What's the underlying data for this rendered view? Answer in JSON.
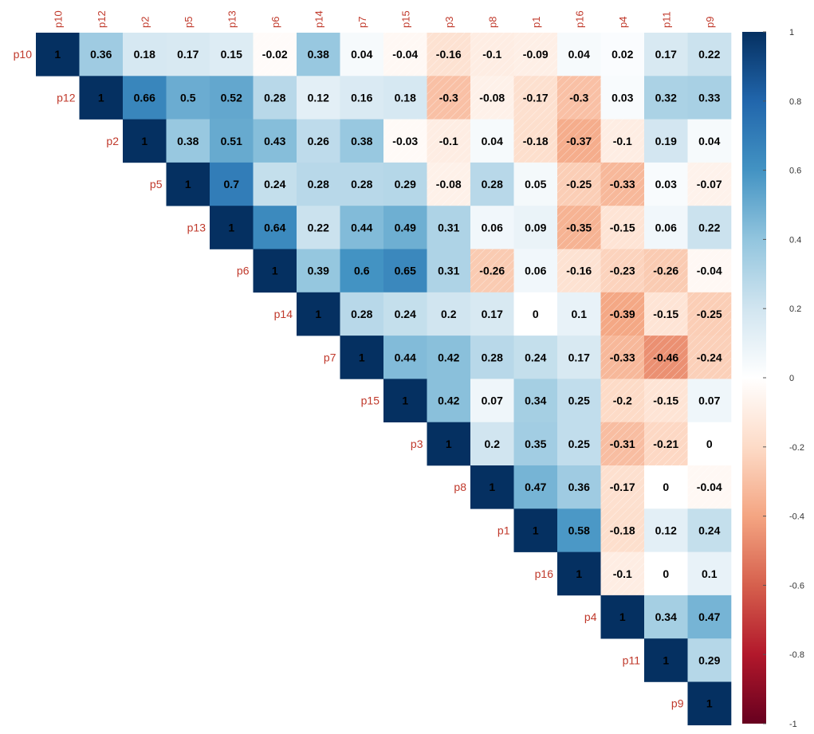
{
  "chart_data": {
    "type": "heatmap",
    "layout": "upper-triangle",
    "title": "",
    "xlabel": "",
    "ylabel": "",
    "variables": [
      "p10",
      "p12",
      "p2",
      "p5",
      "p13",
      "p6",
      "p14",
      "p7",
      "p15",
      "p3",
      "p8",
      "p1",
      "p16",
      "p4",
      "p11",
      "p9"
    ],
    "values": [
      [
        1,
        0.36,
        0.18,
        0.17,
        0.15,
        -0.02,
        0.38,
        0.04,
        -0.04,
        -0.16,
        -0.1,
        -0.09,
        0.04,
        0.02,
        0.17,
        0.22
      ],
      [
        1,
        0.66,
        0.5,
        0.52,
        0.28,
        0.12,
        0.16,
        0.18,
        -0.3,
        -0.08,
        -0.17,
        -0.3,
        0.03,
        0.32,
        0.33
      ],
      [
        1,
        0.38,
        0.51,
        0.43,
        0.26,
        0.38,
        -0.03,
        -0.1,
        0.04,
        -0.18,
        -0.37,
        -0.1,
        0.19,
        0.04
      ],
      [
        1,
        0.7,
        0.24,
        0.28,
        0.28,
        0.29,
        -0.08,
        0.28,
        0.05,
        -0.25,
        -0.33,
        0.03,
        -0.07
      ],
      [
        1,
        0.64,
        0.22,
        0.44,
        0.49,
        0.31,
        0.06,
        0.09,
        -0.35,
        -0.15,
        0.06,
        0.22
      ],
      [
        1,
        0.39,
        0.6,
        0.65,
        0.31,
        -0.26,
        0.06,
        -0.16,
        -0.23,
        -0.26,
        -0.04
      ],
      [
        1,
        0.28,
        0.24,
        0.2,
        0.17,
        0,
        0.1,
        -0.39,
        -0.15,
        -0.25
      ],
      [
        1,
        0.44,
        0.42,
        0.28,
        0.24,
        0.17,
        -0.33,
        -0.46,
        -0.24
      ],
      [
        1,
        0.42,
        0.07,
        0.34,
        0.25,
        -0.2,
        -0.15,
        0.07
      ],
      [
        1,
        0.2,
        0.35,
        0.25,
        -0.31,
        -0.21,
        0
      ],
      [
        1,
        0.47,
        0.36,
        -0.17,
        0,
        -0.04
      ],
      [
        1,
        0.58,
        -0.18,
        0.12,
        0.24
      ],
      [
        1,
        -0.1,
        0,
        0.1
      ],
      [
        1,
        0.34,
        0.47
      ],
      [
        1,
        0.29
      ],
      [
        1
      ]
    ],
    "colorscale": {
      "min": -1,
      "max": 1,
      "ticks": [
        "1",
        "0.8",
        "0.6",
        "0.4",
        "0.2",
        "0",
        "-0.2",
        "-0.4",
        "-0.6",
        "-0.8",
        "-1"
      ],
      "stops": [
        {
          "v": -1,
          "color": "#67001f"
        },
        {
          "v": -0.8,
          "color": "#b2182b"
        },
        {
          "v": -0.6,
          "color": "#d6604d"
        },
        {
          "v": -0.4,
          "color": "#f4a582"
        },
        {
          "v": -0.2,
          "color": "#fddbc7"
        },
        {
          "v": 0,
          "color": "#ffffff"
        },
        {
          "v": 0.2,
          "color": "#d1e5f0"
        },
        {
          "v": 0.4,
          "color": "#92c5de"
        },
        {
          "v": 0.6,
          "color": "#4393c3"
        },
        {
          "v": 0.8,
          "color": "#2166ac"
        },
        {
          "v": 1,
          "color": "#053061"
        }
      ]
    },
    "label_color": "#c0392b",
    "negative_hatching": true,
    "legend_position": "right"
  }
}
